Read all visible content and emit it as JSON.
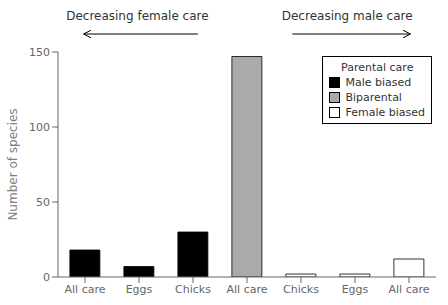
{
  "chart_data": {
    "type": "bar",
    "categories": [
      "All care",
      "Eggs",
      "Chicks",
      "All care",
      "Chicks",
      "Eggs",
      "All care"
    ],
    "series": [
      {
        "name": "Male biased",
        "color": "#000000",
        "values": [
          18,
          7,
          30,
          null,
          null,
          null,
          null
        ]
      },
      {
        "name": "Biparental",
        "color": "#aaaaaa",
        "values": [
          null,
          null,
          null,
          147,
          null,
          null,
          null
        ]
      },
      {
        "name": "Female biased",
        "color": "#ffffff",
        "values": [
          null,
          null,
          null,
          null,
          2,
          2,
          12
        ]
      }
    ],
    "stacked": true,
    "ylabel": "Number of species",
    "ylim": [
      0,
      150
    ],
    "yticks": [
      0,
      50,
      100,
      150
    ],
    "legend": "upper right",
    "legend_title": "Parental care",
    "annotations": [
      "Decreasing female care",
      "Decreasing male care"
    ],
    "grid": false
  }
}
